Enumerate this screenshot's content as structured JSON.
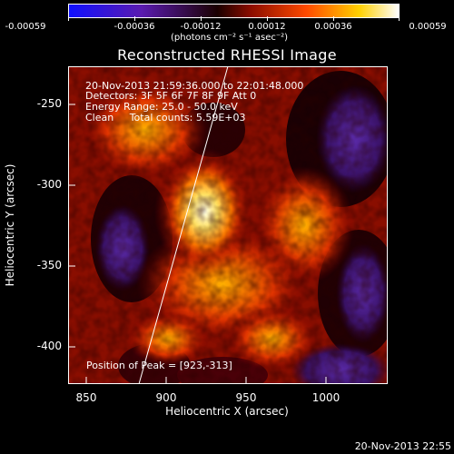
{
  "colorbar": {
    "tick_labels": [
      "-0.00059",
      "-0.00036",
      "-0.00012",
      "0.00012",
      "0.00036",
      "0.00059"
    ],
    "unit_label": "(photons cm⁻² s⁻¹ asec⁻²)",
    "colormap": [
      "#0000ff",
      "#4b0082",
      "#000000",
      "#8b0000",
      "#ff4500",
      "#ffd700",
      "#ffffff"
    ]
  },
  "title": "Reconstructed RHESSI Image",
  "info": {
    "time": "20-Nov-2013 21:59:36.000 to 22:01:48.000",
    "detectors": "Detectors: 3F 5F 6F 7F 8F 9F Att 0",
    "energy": "Energy Range: 25.0 - 50.0 keV",
    "clean": "Clean     Total counts: 5.59E+03"
  },
  "peak": "Position of Peak = [923,-313]",
  "axes": {
    "x_label": "Heliocentric X (arcsec)",
    "y_label": "Heliocentric Y (arcsec)",
    "x_ticks": [
      "850",
      "900",
      "950",
      "1000"
    ],
    "y_ticks": [
      "-250",
      "-300",
      "-350",
      "-400"
    ],
    "x_range": [
      840,
      1030
    ],
    "y_range": [
      -420,
      -230
    ]
  },
  "timestamp": "20-Nov-2013 22:55"
}
